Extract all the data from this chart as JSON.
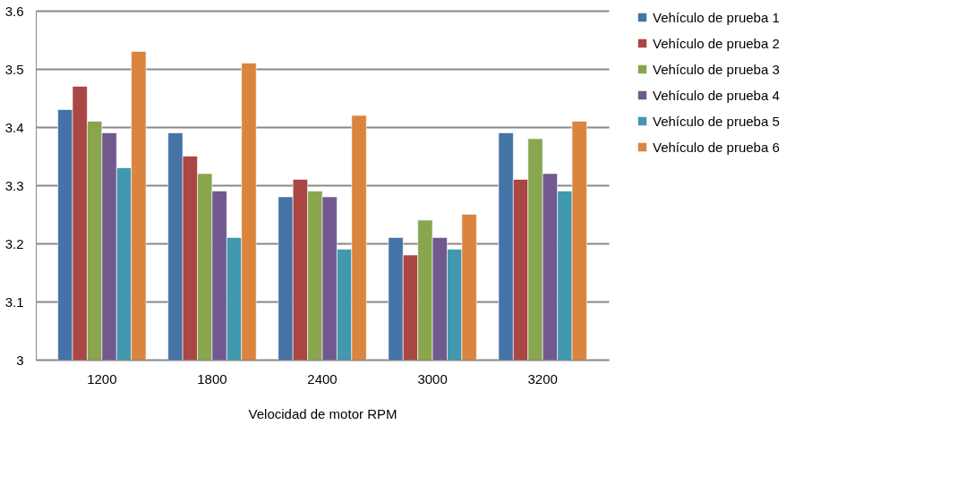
{
  "chart_data": {
    "type": "bar",
    "xlabel": "Velocidad de motor RPM",
    "categories": [
      "1200",
      "1800",
      "2400",
      "3000",
      "3200"
    ],
    "series": [
      {
        "name": "Vehículo de prueba 1",
        "color": "#4572a7",
        "values": [
          3.43,
          3.39,
          3.28,
          3.21,
          3.39
        ]
      },
      {
        "name": "Vehículo de prueba 2",
        "color": "#aa4643",
        "values": [
          3.47,
          3.35,
          3.31,
          3.18,
          3.31
        ]
      },
      {
        "name": "Vehículo de prueba 3",
        "color": "#89a54e",
        "values": [
          3.41,
          3.32,
          3.29,
          3.24,
          3.38
        ]
      },
      {
        "name": "Vehículo de prueba 4",
        "color": "#71588f",
        "values": [
          3.39,
          3.29,
          3.28,
          3.21,
          3.32
        ]
      },
      {
        "name": "Vehículo de prueba 5",
        "color": "#4198af",
        "values": [
          3.33,
          3.21,
          3.19,
          3.19,
          3.29
        ]
      },
      {
        "name": "Vehículo de prueba 6",
        "color": "#db843d",
        "values": [
          3.53,
          3.51,
          3.42,
          3.25,
          3.41
        ]
      }
    ],
    "ylim": [
      3,
      3.6
    ],
    "yticks": [
      3,
      3.1,
      3.2,
      3.3,
      3.4,
      3.5,
      3.6
    ],
    "grid": "y",
    "legend": "right"
  }
}
